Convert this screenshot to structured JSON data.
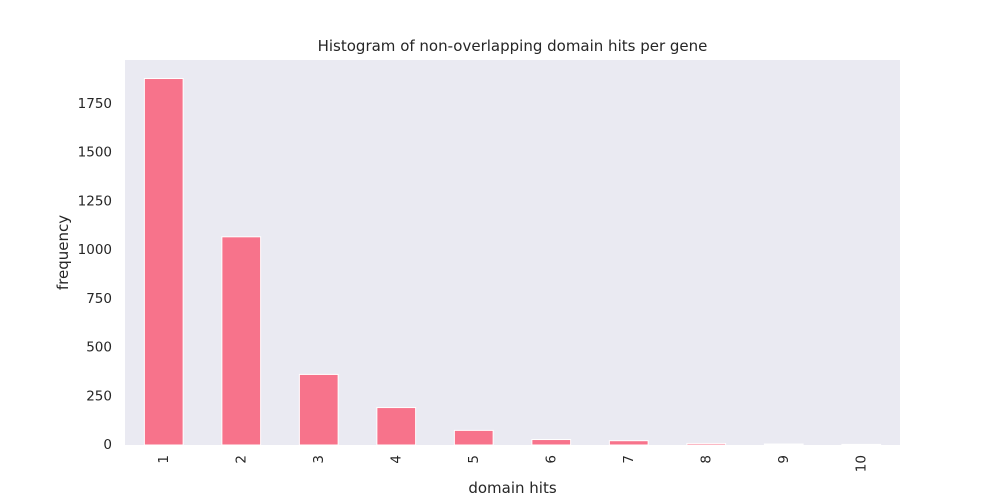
{
  "chart_data": {
    "type": "bar",
    "title": "Histogram of non-overlapping domain hits per gene",
    "xlabel": "domain hits",
    "ylabel": "frequency",
    "categories": [
      "1",
      "2",
      "3",
      "4",
      "5",
      "6",
      "7",
      "8",
      "9",
      "10"
    ],
    "values": [
      1880,
      1068,
      362,
      192,
      75,
      28,
      22,
      8,
      5,
      3
    ],
    "ylim": [
      0,
      1975
    ],
    "yticks": [
      0,
      250,
      500,
      750,
      1000,
      1250,
      1500,
      1750
    ],
    "grid": false,
    "legend": "none",
    "colors": {
      "bar": "#f7738b",
      "plot_background": "#eaeaf2",
      "bar_edge": "#ffffff"
    }
  }
}
